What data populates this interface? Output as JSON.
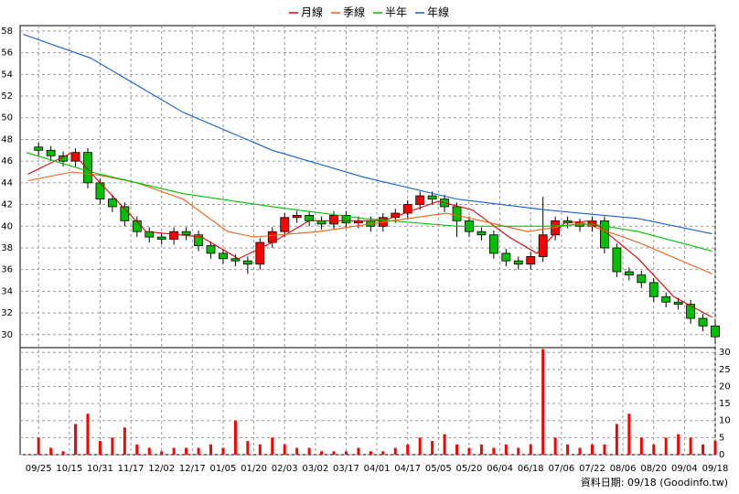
{
  "chart_data": {
    "type": "candlestick",
    "grid": true,
    "xlim": [
      -6,
      220
    ],
    "xticks": [
      {
        "value": 0,
        "label": "09/25"
      },
      {
        "value": 10,
        "label": "10/15"
      },
      {
        "value": 20,
        "label": "10/31"
      },
      {
        "value": 30,
        "label": "11/17"
      },
      {
        "value": 40,
        "label": "12/02"
      },
      {
        "value": 50,
        "label": "12/17"
      },
      {
        "value": 60,
        "label": "01/05"
      },
      {
        "value": 70,
        "label": "01/20"
      },
      {
        "value": 80,
        "label": "02/03"
      },
      {
        "value": 90,
        "label": "03/02"
      },
      {
        "value": 100,
        "label": "03/17"
      },
      {
        "value": 110,
        "label": "04/01"
      },
      {
        "value": 120,
        "label": "04/17"
      },
      {
        "value": 130,
        "label": "05/05"
      },
      {
        "value": 140,
        "label": "05/20"
      },
      {
        "value": 150,
        "label": "06/04"
      },
      {
        "value": 160,
        "label": "06/18"
      },
      {
        "value": 170,
        "label": "07/06"
      },
      {
        "value": 180,
        "label": "07/22"
      },
      {
        "value": 190,
        "label": "08/06"
      },
      {
        "value": 200,
        "label": "08/20"
      },
      {
        "value": 210,
        "label": "09/04"
      },
      {
        "value": 220,
        "label": "09/18"
      }
    ],
    "ylim": [
      28.8,
      58.5
    ],
    "yticks": [
      30,
      32,
      34,
      36,
      38,
      40,
      42,
      44,
      46,
      48,
      50,
      52,
      54,
      56,
      58
    ],
    "volume_ylim": [
      0,
      31.4
    ],
    "volume_yticks": [
      0,
      5,
      10,
      15,
      20,
      25,
      30
    ],
    "up_color": "#ff0000",
    "down_color": "#00c000",
    "volume_color": "#ff0000",
    "candles": {
      "x": [
        0,
        4,
        8,
        12,
        16,
        20,
        24,
        28,
        32,
        36,
        40,
        44,
        48,
        52,
        56,
        60,
        64,
        68,
        72,
        76,
        80,
        84,
        88,
        92,
        96,
        100,
        104,
        108,
        112,
        116,
        120,
        124,
        128,
        132,
        136,
        140,
        144,
        148,
        152,
        156,
        160,
        164,
        168,
        172,
        176,
        180,
        184,
        188,
        192,
        196,
        200,
        204,
        208,
        212,
        216,
        220
      ],
      "open": [
        47.3,
        47,
        46.5,
        46,
        46.8,
        44,
        42.5,
        41.8,
        40.5,
        39.5,
        39,
        38.8,
        39.5,
        39.2,
        38.2,
        37.5,
        37,
        36.8,
        36.5,
        38.5,
        39.5,
        40.8,
        41,
        40.5,
        40.2,
        41,
        40.3,
        40.5,
        40,
        40.8,
        41.2,
        42,
        42.8,
        42.5,
        41.8,
        40.5,
        39.5,
        39.2,
        37.5,
        36.8,
        36.5,
        37.2,
        39.2,
        40.5,
        40.3,
        40,
        40.5,
        38,
        35.8,
        35.5,
        34.8,
        33.5,
        33,
        32.8,
        31.5,
        30.8
      ],
      "high": [
        47.7,
        47.4,
        46.9,
        47.2,
        47.2,
        44.4,
        42.9,
        42.2,
        40.9,
        39.9,
        39.4,
        39.9,
        39.9,
        39.6,
        38.6,
        37.9,
        37.4,
        37.2,
        38.9,
        39.9,
        41.2,
        41.4,
        41.4,
        40.9,
        41.4,
        41.4,
        40.9,
        40.9,
        41.2,
        41.6,
        42.4,
        43.2,
        43.2,
        42.9,
        42.2,
        40.9,
        39.9,
        39.6,
        37.9,
        37.2,
        37.6,
        42.7,
        40.9,
        40.9,
        40.7,
        40.9,
        40.9,
        38.4,
        36.2,
        35.9,
        35.2,
        33.9,
        33.4,
        33.2,
        31.9,
        31.2
      ],
      "low": [
        46.5,
        46,
        45.5,
        45.5,
        43.5,
        42,
        41.3,
        40,
        39,
        38.5,
        38.3,
        38.3,
        38.7,
        37.7,
        37,
        36.5,
        36.3,
        35.6,
        36,
        38,
        39,
        40.3,
        40,
        39.7,
        39.7,
        39.8,
        39.8,
        39.5,
        39.5,
        40.3,
        40.7,
        41.5,
        42,
        41.3,
        39,
        39,
        38.7,
        37,
        36.3,
        36,
        36,
        36.7,
        38.7,
        39.8,
        39.5,
        39.5,
        37.5,
        35.3,
        35,
        34.3,
        33,
        32.5,
        32.3,
        31,
        30.3,
        29.3
      ],
      "close": [
        47,
        46.5,
        46,
        46.8,
        44,
        42.5,
        41.8,
        40.5,
        39.5,
        39,
        38.8,
        39.5,
        39.2,
        38.2,
        37.5,
        37,
        36.8,
        36.5,
        38.5,
        39.5,
        40.8,
        41,
        40.5,
        40.2,
        41,
        40.3,
        40.5,
        40,
        40.8,
        41.2,
        42,
        42.8,
        42.5,
        41.8,
        40.5,
        39.5,
        39.2,
        37.5,
        36.8,
        36.5,
        37.2,
        39.2,
        40.5,
        40.3,
        40,
        40.5,
        38,
        35.8,
        35.5,
        34.8,
        33.5,
        33,
        32.8,
        31.5,
        30.8,
        29.8
      ],
      "volume": [
        5,
        2,
        1,
        9,
        12,
        4,
        5,
        8,
        3,
        2,
        1,
        2,
        2,
        2,
        3,
        2,
        10,
        4,
        3,
        5,
        3,
        2,
        2,
        1,
        1,
        1,
        2,
        1,
        1,
        2,
        3,
        5,
        4,
        6,
        3,
        2,
        3,
        2,
        3,
        2,
        3,
        31,
        5,
        3,
        2,
        3,
        3,
        9,
        12,
        5,
        3,
        5,
        6,
        5,
        3,
        4
      ]
    },
    "series": [
      {
        "name": "月線",
        "color": "#e00000",
        "x": [
          -3.5,
          11,
          20,
          35,
          53,
          65,
          76,
          88,
          112,
          130,
          141,
          153,
          162,
          171,
          180,
          195,
          206.5,
          219
        ],
        "values": [
          44.8,
          46.8,
          44,
          39.5,
          39,
          37,
          38.5,
          40.5,
          40.5,
          42.3,
          41.5,
          39,
          37.5,
          40.3,
          40.5,
          37,
          33.5,
          31.6
        ]
      },
      {
        "name": "季線",
        "color": "#f06010",
        "x": [
          -3.5,
          11,
          20,
          32,
          47,
          61.5,
          70,
          91,
          115,
          132.5,
          144,
          159,
          177,
          195,
          219
        ],
        "values": [
          44.2,
          45,
          44.7,
          44,
          42.5,
          39.5,
          39,
          39.5,
          40.5,
          41.2,
          40.5,
          39.5,
          40.3,
          38.5,
          35.6
        ]
      },
      {
        "name": "半年",
        "color": "#00c000",
        "x": [
          -4,
          17,
          47,
          76,
          106,
          136,
          165,
          180,
          195,
          219
        ],
        "values": [
          46.8,
          45,
          43,
          41.8,
          40.7,
          40,
          40,
          40.2,
          39.5,
          37.7
        ]
      },
      {
        "name": "年線",
        "color": "#1060d0",
        "x": [
          -5,
          17,
          47,
          76,
          106,
          136,
          165,
          195,
          219
        ],
        "values": [
          57.7,
          55.5,
          50.5,
          47,
          44.5,
          42.5,
          41.5,
          40.7,
          39.3
        ]
      }
    ],
    "footer": "資料日期: 09/18 (Goodinfo.tw)"
  }
}
